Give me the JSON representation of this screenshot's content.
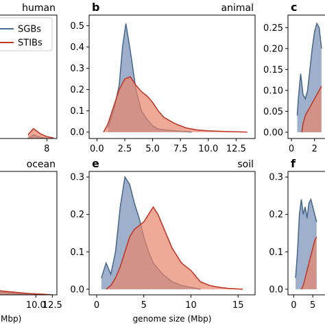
{
  "colors": {
    "sgb_fill": "#8ea2c4",
    "sgb_line": "#4a6a8e",
    "stib_fill": "#e8866b",
    "stib_line": "#c0392b"
  },
  "legend": {
    "entries": [
      "SGBs",
      "STIBs"
    ]
  },
  "chart_data": [
    {
      "panel": "a",
      "type": "area",
      "title": "human",
      "letter": "",
      "xlim": [
        0,
        9.5
      ],
      "ylim": [
        0,
        1
      ],
      "xticks": [
        8
      ],
      "xtick_labels": [
        "8"
      ],
      "yticks": [],
      "ytick_labels": [],
      "xlabel": "",
      "series": [
        {
          "name": "SGBs",
          "x": [
            5.2,
            6.0,
            7.0,
            8.0
          ],
          "y": [
            0.0,
            0.03,
            0.01,
            0.0
          ]
        },
        {
          "name": "STIBs",
          "x": [
            5.2,
            6.0,
            7.0,
            8.0,
            9.0
          ],
          "y": [
            0.03,
            0.08,
            0.04,
            0.015,
            0.005
          ]
        }
      ]
    },
    {
      "panel": "b",
      "type": "area",
      "title": "animal",
      "letter": "b",
      "xlim": [
        -0.7,
        14.2
      ],
      "ylim": [
        -0.03,
        0.55
      ],
      "xticks": [
        0,
        2.5,
        5,
        7.5,
        10,
        12.5
      ],
      "xtick_labels": [
        "0.0",
        "2.5",
        "5.0",
        "7.5",
        "10.0",
        "12.5"
      ],
      "yticks": [
        0,
        0.1,
        0.2,
        0.3,
        0.4,
        0.5
      ],
      "ytick_labels": [
        "0.0",
        "0.1",
        "0.2",
        "0.3",
        "0.4",
        "0.5"
      ],
      "xlabel": "",
      "series": [
        {
          "name": "SGBs",
          "x": [
            1.0,
            1.5,
            2.0,
            2.3,
            2.6,
            3.0,
            3.5,
            4.0,
            4.5,
            5.0,
            5.5,
            6.5,
            7.5,
            8.5
          ],
          "y": [
            0.02,
            0.1,
            0.22,
            0.4,
            0.51,
            0.38,
            0.2,
            0.1,
            0.06,
            0.03,
            0.015,
            0.008,
            0.004,
            0.0
          ]
        },
        {
          "name": "STIBs",
          "x": [
            0.6,
            1.0,
            1.5,
            2.0,
            2.5,
            3.0,
            3.5,
            4.0,
            4.5,
            5.0,
            5.5,
            6.0,
            7.0,
            8.0,
            9.0,
            10.0,
            11.5,
            13.5
          ],
          "y": [
            0.0,
            0.04,
            0.12,
            0.2,
            0.25,
            0.26,
            0.22,
            0.19,
            0.17,
            0.14,
            0.1,
            0.07,
            0.04,
            0.02,
            0.01,
            0.006,
            0.003,
            0.0
          ]
        }
      ]
    },
    {
      "panel": "c",
      "type": "area",
      "title": "",
      "letter": "c",
      "xlim": [
        -0.3,
        3.5
      ],
      "ylim": [
        -0.015,
        0.28
      ],
      "xticks": [
        0,
        2
      ],
      "xtick_labels": [
        "0",
        "2"
      ],
      "yticks": [
        0,
        0.05,
        0.1,
        0.15,
        0.2,
        0.25
      ],
      "ytick_labels": [
        "0.00",
        "0.05",
        "0.10",
        "0.15",
        "0.20",
        "0.25"
      ],
      "xlabel": "",
      "series": [
        {
          "name": "SGBs",
          "x": [
            0.5,
            0.6,
            0.8,
            1.0,
            1.2,
            1.4,
            1.6,
            1.8,
            2.0,
            2.2,
            2.4,
            2.6
          ],
          "y": [
            0.04,
            0.08,
            0.14,
            0.09,
            0.08,
            0.1,
            0.15,
            0.2,
            0.24,
            0.26,
            0.25,
            0.2
          ]
        },
        {
          "name": "STIBs",
          "x": [
            0.9,
            1.0,
            1.2,
            1.4,
            1.6,
            1.8,
            2.0,
            2.2,
            2.4,
            2.6
          ],
          "y": [
            0.0,
            0.02,
            0.04,
            0.05,
            0.06,
            0.07,
            0.08,
            0.09,
            0.1,
            0.11
          ]
        }
      ]
    },
    {
      "panel": "d",
      "type": "area",
      "title": "ocean",
      "letter": "",
      "xlim": [
        3.5,
        13.2
      ],
      "ylim": [
        0,
        1
      ],
      "xticks": [
        10,
        12.5
      ],
      "xtick_labels": [
        "10.0",
        "12.5"
      ],
      "yticks": [],
      "ytick_labels": [],
      "xlabel": "Mbp)",
      "series": [
        {
          "name": "SGBs",
          "x": [
            3.5,
            5.0,
            7.0,
            9.0,
            10.0
          ],
          "y": [
            0.03,
            0.02,
            0.01,
            0.004,
            0.0
          ]
        },
        {
          "name": "STIBs",
          "x": [
            3.5,
            5.0,
            7.0,
            9.0,
            11.0,
            12.5
          ],
          "y": [
            0.04,
            0.03,
            0.02,
            0.01,
            0.005,
            0.0
          ]
        }
      ]
    },
    {
      "panel": "e",
      "type": "area",
      "title": "soil",
      "letter": "e",
      "xlim": [
        -0.8,
        16.8
      ],
      "ylim": [
        -0.015,
        0.315
      ],
      "xticks": [
        0,
        5,
        10,
        15
      ],
      "xtick_labels": [
        "0",
        "5",
        "10",
        "15"
      ],
      "yticks": [
        0,
        0.1,
        0.2,
        0.3
      ],
      "ytick_labels": [
        "0.0",
        "0.1",
        "0.2",
        "0.3"
      ],
      "xlabel": "genome size (Mbp)",
      "series": [
        {
          "name": "SGBs",
          "x": [
            0.5,
            1.0,
            1.5,
            2.0,
            2.5,
            3.0,
            3.5,
            4.0,
            4.5,
            5.0,
            5.5,
            6.0,
            7.0,
            8.0,
            9.0,
            10.0,
            11.0
          ],
          "y": [
            0.03,
            0.07,
            0.04,
            0.1,
            0.22,
            0.3,
            0.28,
            0.23,
            0.19,
            0.14,
            0.1,
            0.07,
            0.04,
            0.02,
            0.01,
            0.005,
            0.0
          ]
        },
        {
          "name": "STIBs",
          "x": [
            1.0,
            1.5,
            2.0,
            2.5,
            3.0,
            3.5,
            4.0,
            4.5,
            5.0,
            5.5,
            6.0,
            6.5,
            7.0,
            7.5,
            8.0,
            9.0,
            10.0,
            11.0,
            12.0,
            13.0,
            14.0,
            15.5
          ],
          "y": [
            0.0,
            0.01,
            0.03,
            0.06,
            0.1,
            0.14,
            0.16,
            0.17,
            0.18,
            0.2,
            0.22,
            0.2,
            0.17,
            0.14,
            0.11,
            0.07,
            0.05,
            0.02,
            0.01,
            0.005,
            0.002,
            0.0
          ]
        }
      ]
    },
    {
      "panel": "f",
      "type": "area",
      "title": "",
      "letter": "f",
      "xlim": [
        -1.5,
        10
      ],
      "ylim": [
        -0.015,
        0.315
      ],
      "xticks": [
        0,
        5
      ],
      "xtick_labels": [
        "0",
        "5"
      ],
      "yticks": [
        0,
        0.1,
        0.2,
        0.3
      ],
      "ytick_labels": [
        "0.0",
        "0.1",
        "0.2",
        "0.3"
      ],
      "xlabel": "",
      "series": [
        {
          "name": "SGBs",
          "x": [
            0.5,
            1.0,
            1.5,
            2.0,
            2.5,
            3.0,
            3.5,
            4.0,
            4.5,
            5.0,
            5.5,
            6.0
          ],
          "y": [
            0.03,
            0.1,
            0.2,
            0.24,
            0.2,
            0.22,
            0.19,
            0.23,
            0.24,
            0.22,
            0.2,
            0.18
          ]
        },
        {
          "name": "STIBs",
          "x": [
            2.0,
            2.5,
            3.0,
            3.5,
            4.0,
            4.5,
            5.0,
            5.5,
            6.0
          ],
          "y": [
            0.0,
            0.01,
            0.03,
            0.05,
            0.07,
            0.09,
            0.11,
            0.13,
            0.14
          ]
        }
      ]
    }
  ]
}
